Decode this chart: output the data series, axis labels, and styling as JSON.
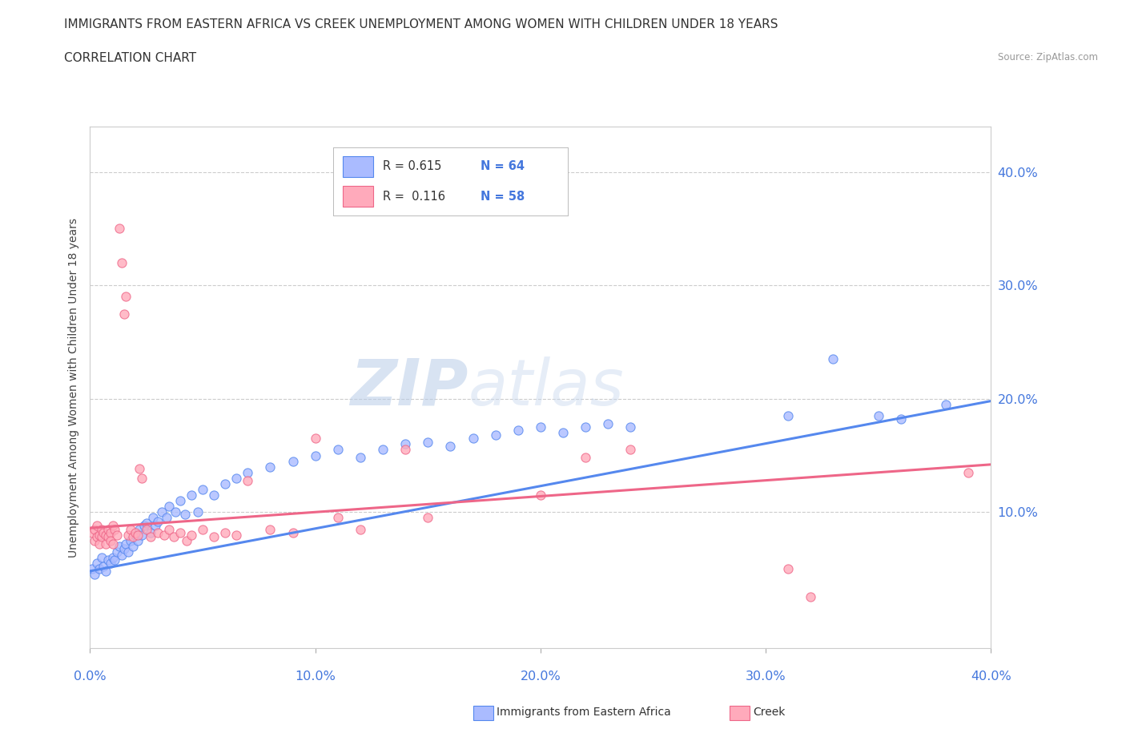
{
  "title_line1": "IMMIGRANTS FROM EASTERN AFRICA VS CREEK UNEMPLOYMENT AMONG WOMEN WITH CHILDREN UNDER 18 YEARS",
  "title_line2": "CORRELATION CHART",
  "source_text": "Source: ZipAtlas.com",
  "ylabel": "Unemployment Among Women with Children Under 18 years",
  "xlim": [
    0.0,
    0.4
  ],
  "ylim": [
    -0.02,
    0.44
  ],
  "ytick_values": [
    0.1,
    0.2,
    0.3,
    0.4
  ],
  "ytick_labels": [
    "10.0%",
    "20.0%",
    "30.0%",
    "40.0%"
  ],
  "xtick_values": [
    0.0,
    0.1,
    0.2,
    0.3,
    0.4
  ],
  "xtick_labels": [
    "0.0%",
    "10.0%",
    "20.0%",
    "30.0%",
    "40.0%"
  ],
  "grid_color": "#cccccc",
  "background_color": "#ffffff",
  "watermark_zip": "ZIP",
  "watermark_atlas": "atlas",
  "blue_color": "#5588ee",
  "pink_color": "#ee6688",
  "blue_fill": "#aabbff",
  "pink_fill": "#ffaabb",
  "blue_scatter": [
    [
      0.001,
      0.05
    ],
    [
      0.002,
      0.045
    ],
    [
      0.003,
      0.055
    ],
    [
      0.004,
      0.05
    ],
    [
      0.005,
      0.06
    ],
    [
      0.006,
      0.052
    ],
    [
      0.007,
      0.048
    ],
    [
      0.008,
      0.058
    ],
    [
      0.009,
      0.055
    ],
    [
      0.01,
      0.06
    ],
    [
      0.011,
      0.058
    ],
    [
      0.012,
      0.065
    ],
    [
      0.013,
      0.07
    ],
    [
      0.014,
      0.062
    ],
    [
      0.015,
      0.068
    ],
    [
      0.016,
      0.072
    ],
    [
      0.017,
      0.065
    ],
    [
      0.018,
      0.075
    ],
    [
      0.019,
      0.07
    ],
    [
      0.02,
      0.08
    ],
    [
      0.021,
      0.075
    ],
    [
      0.022,
      0.085
    ],
    [
      0.023,
      0.08
    ],
    [
      0.024,
      0.088
    ],
    [
      0.025,
      0.09
    ],
    [
      0.027,
      0.082
    ],
    [
      0.028,
      0.095
    ],
    [
      0.029,
      0.088
    ],
    [
      0.03,
      0.092
    ],
    [
      0.032,
      0.1
    ],
    [
      0.034,
      0.095
    ],
    [
      0.035,
      0.105
    ],
    [
      0.038,
      0.1
    ],
    [
      0.04,
      0.11
    ],
    [
      0.042,
      0.098
    ],
    [
      0.045,
      0.115
    ],
    [
      0.048,
      0.1
    ],
    [
      0.05,
      0.12
    ],
    [
      0.055,
      0.115
    ],
    [
      0.06,
      0.125
    ],
    [
      0.065,
      0.13
    ],
    [
      0.07,
      0.135
    ],
    [
      0.08,
      0.14
    ],
    [
      0.09,
      0.145
    ],
    [
      0.1,
      0.15
    ],
    [
      0.11,
      0.155
    ],
    [
      0.12,
      0.148
    ],
    [
      0.13,
      0.155
    ],
    [
      0.14,
      0.16
    ],
    [
      0.15,
      0.162
    ],
    [
      0.16,
      0.158
    ],
    [
      0.17,
      0.165
    ],
    [
      0.18,
      0.168
    ],
    [
      0.19,
      0.172
    ],
    [
      0.2,
      0.175
    ],
    [
      0.21,
      0.17
    ],
    [
      0.22,
      0.175
    ],
    [
      0.23,
      0.178
    ],
    [
      0.24,
      0.175
    ],
    [
      0.31,
      0.185
    ],
    [
      0.33,
      0.235
    ],
    [
      0.35,
      0.185
    ],
    [
      0.36,
      0.182
    ],
    [
      0.38,
      0.195
    ]
  ],
  "pink_scatter": [
    [
      0.001,
      0.082
    ],
    [
      0.002,
      0.085
    ],
    [
      0.002,
      0.075
    ],
    [
      0.003,
      0.078
    ],
    [
      0.003,
      0.088
    ],
    [
      0.004,
      0.08
    ],
    [
      0.004,
      0.072
    ],
    [
      0.005,
      0.085
    ],
    [
      0.005,
      0.078
    ],
    [
      0.006,
      0.082
    ],
    [
      0.007,
      0.08
    ],
    [
      0.007,
      0.072
    ],
    [
      0.008,
      0.085
    ],
    [
      0.008,
      0.078
    ],
    [
      0.009,
      0.082
    ],
    [
      0.009,
      0.075
    ],
    [
      0.01,
      0.088
    ],
    [
      0.01,
      0.072
    ],
    [
      0.011,
      0.085
    ],
    [
      0.012,
      0.08
    ],
    [
      0.013,
      0.35
    ],
    [
      0.014,
      0.32
    ],
    [
      0.015,
      0.275
    ],
    [
      0.016,
      0.29
    ],
    [
      0.017,
      0.08
    ],
    [
      0.018,
      0.085
    ],
    [
      0.019,
      0.078
    ],
    [
      0.02,
      0.082
    ],
    [
      0.021,
      0.08
    ],
    [
      0.022,
      0.138
    ],
    [
      0.023,
      0.13
    ],
    [
      0.025,
      0.085
    ],
    [
      0.027,
      0.078
    ],
    [
      0.03,
      0.082
    ],
    [
      0.033,
      0.08
    ],
    [
      0.035,
      0.085
    ],
    [
      0.037,
      0.078
    ],
    [
      0.04,
      0.082
    ],
    [
      0.043,
      0.075
    ],
    [
      0.045,
      0.08
    ],
    [
      0.05,
      0.085
    ],
    [
      0.055,
      0.078
    ],
    [
      0.06,
      0.082
    ],
    [
      0.065,
      0.08
    ],
    [
      0.07,
      0.128
    ],
    [
      0.08,
      0.085
    ],
    [
      0.09,
      0.082
    ],
    [
      0.1,
      0.165
    ],
    [
      0.11,
      0.095
    ],
    [
      0.12,
      0.085
    ],
    [
      0.14,
      0.155
    ],
    [
      0.15,
      0.095
    ],
    [
      0.2,
      0.115
    ],
    [
      0.22,
      0.148
    ],
    [
      0.24,
      0.155
    ],
    [
      0.31,
      0.05
    ],
    [
      0.32,
      0.025
    ],
    [
      0.39,
      0.135
    ]
  ],
  "blue_line_x": [
    0.0,
    0.4
  ],
  "blue_line_y": [
    0.048,
    0.198
  ],
  "pink_line_x": [
    0.0,
    0.4
  ],
  "pink_line_y": [
    0.086,
    0.142
  ]
}
